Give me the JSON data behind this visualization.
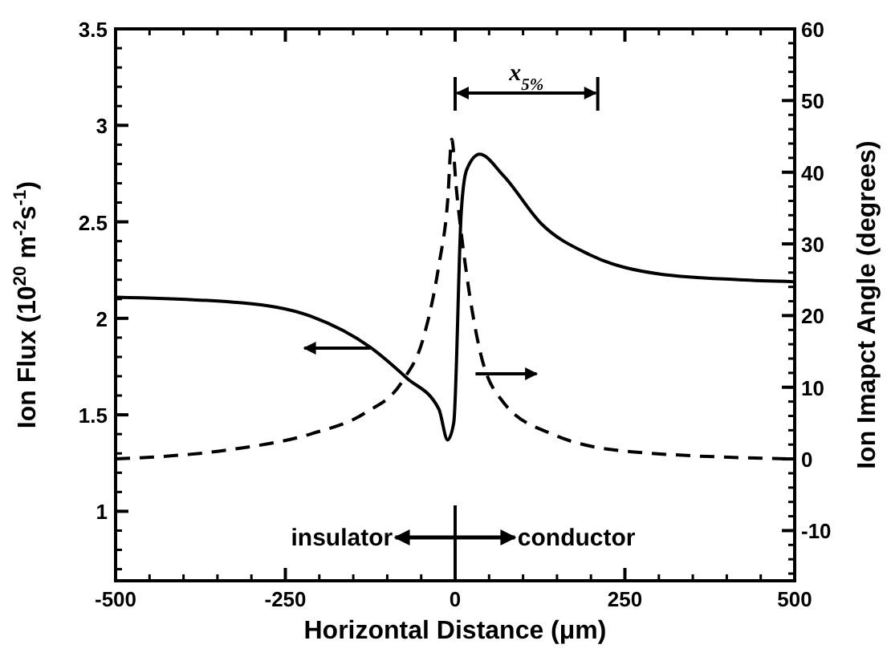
{
  "chart_data": {
    "type": "line",
    "xlabel": "Horizontal Distance (μm)",
    "ylabel": "Ion Flux (10$^{20}$ m$^{-2}$s$^{-1}$)",
    "y2label": "Ion Imapct Angle (degrees)",
    "xlim": [
      -500,
      500
    ],
    "xticks": [
      -500,
      -250,
      0,
      250,
      500
    ],
    "ylim": [
      0.64,
      3.5
    ],
    "yticks": [
      1,
      1.5,
      2,
      2.5,
      3,
      3.5
    ],
    "y2lim": [
      -17,
      60
    ],
    "y2ticks": [
      -10,
      0,
      10,
      20,
      30,
      40,
      50,
      60
    ],
    "grid": false,
    "annotations": [
      "x$_{5%}$",
      "insulator",
      "conductor"
    ],
    "series": [
      {
        "color": "#000000",
        "line_style": "solid",
        "x": [
          -500,
          -314,
          -212,
          -125,
          -71,
          -24,
          -11,
          -2,
          9,
          17,
          36,
          71,
          127,
          198,
          300,
          418,
          500
        ],
        "values": [
          2.11,
          2.08,
          2.01,
          1.85,
          1.69,
          1.53,
          1.37,
          1.46,
          2.55,
          2.77,
          2.85,
          2.74,
          2.49,
          2.33,
          2.23,
          2.2,
          2.19
        ]
      },
      {
        "axis": "y2",
        "color": "#000000",
        "line_style": "dashed",
        "x": [
          -500,
          -331,
          -212,
          -133,
          -78,
          -47,
          -24,
          -11,
          -5,
          2,
          17,
          36,
          71,
          142,
          260,
          500
        ],
        "values": [
          0,
          1.3,
          3.5,
          6.4,
          10.8,
          16.8,
          27,
          36,
          44.6,
          37.5,
          25.7,
          15.3,
          7.9,
          3.5,
          1,
          0
        ]
      }
    ]
  }
}
